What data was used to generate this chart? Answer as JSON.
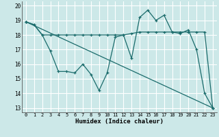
{
  "xlabel": "Humidex (Indice chaleur)",
  "xlim": [
    -0.5,
    23.5
  ],
  "ylim": [
    12.7,
    20.3
  ],
  "yticks": [
    13,
    14,
    15,
    16,
    17,
    18,
    19,
    20
  ],
  "xticks": [
    0,
    1,
    2,
    3,
    4,
    5,
    6,
    7,
    8,
    9,
    10,
    11,
    12,
    13,
    14,
    15,
    16,
    17,
    18,
    19,
    20,
    21,
    22,
    23
  ],
  "bg_color": "#cce8e8",
  "line_color": "#1a6b6b",
  "grid_color": "#ffffff",
  "line1_x": [
    0,
    1,
    2,
    3,
    4,
    5,
    6,
    7,
    8,
    9,
    10,
    11,
    12,
    13,
    14,
    15,
    16,
    17,
    18,
    19,
    20,
    21,
    22,
    23
  ],
  "line1_y": [
    18.9,
    18.7,
    18.0,
    16.9,
    15.5,
    15.5,
    15.4,
    16.0,
    15.3,
    14.2,
    15.4,
    17.85,
    18.0,
    16.4,
    19.2,
    19.7,
    19.0,
    19.35,
    18.2,
    18.1,
    18.35,
    17.0,
    14.0,
    13.0
  ],
  "line2_x": [
    0,
    1,
    2,
    3,
    4,
    5,
    6,
    7,
    8,
    9,
    10,
    11,
    12,
    13,
    14,
    15,
    16,
    17,
    18,
    19,
    20,
    21,
    22,
    23
  ],
  "line2_y": [
    18.9,
    18.7,
    18.0,
    18.0,
    18.0,
    18.0,
    18.0,
    18.0,
    18.0,
    18.0,
    18.0,
    18.0,
    18.0,
    18.1,
    18.2,
    18.2,
    18.2,
    18.2,
    18.2,
    18.2,
    18.2,
    18.2,
    18.2,
    13.0
  ],
  "line3_x": [
    0,
    23
  ],
  "line3_y": [
    18.9,
    13.0
  ]
}
